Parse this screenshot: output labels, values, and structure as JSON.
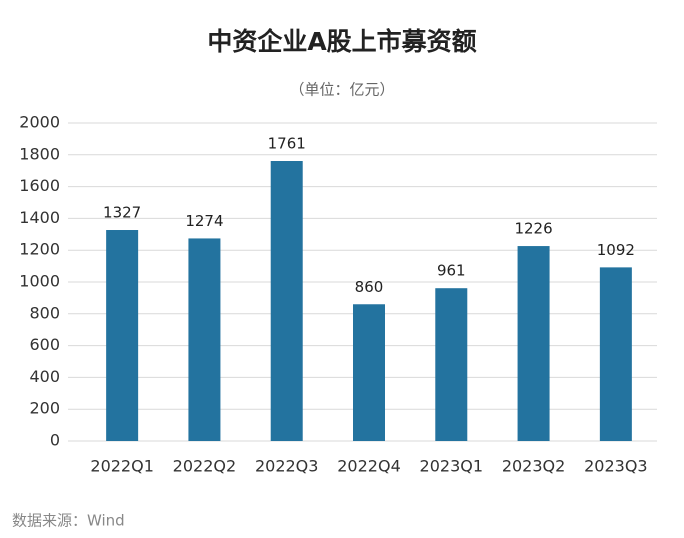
{
  "chart_data": {
    "type": "bar",
    "title": "中资企业A股上市募资额",
    "subtitle": "（单位：亿元）",
    "source": "数据来源：Wind",
    "categories": [
      "2022Q1",
      "2022Q2",
      "2022Q3",
      "2022Q4",
      "2023Q1",
      "2023Q2",
      "2023Q3"
    ],
    "values": [
      1327,
      1274,
      1761,
      860,
      961,
      1226,
      1092
    ],
    "color": "#23739f",
    "ylim": [
      0,
      2000
    ],
    "yticks": [
      0,
      200,
      400,
      600,
      800,
      1000,
      1200,
      1400,
      1600,
      1800,
      2000
    ],
    "grid": true
  }
}
